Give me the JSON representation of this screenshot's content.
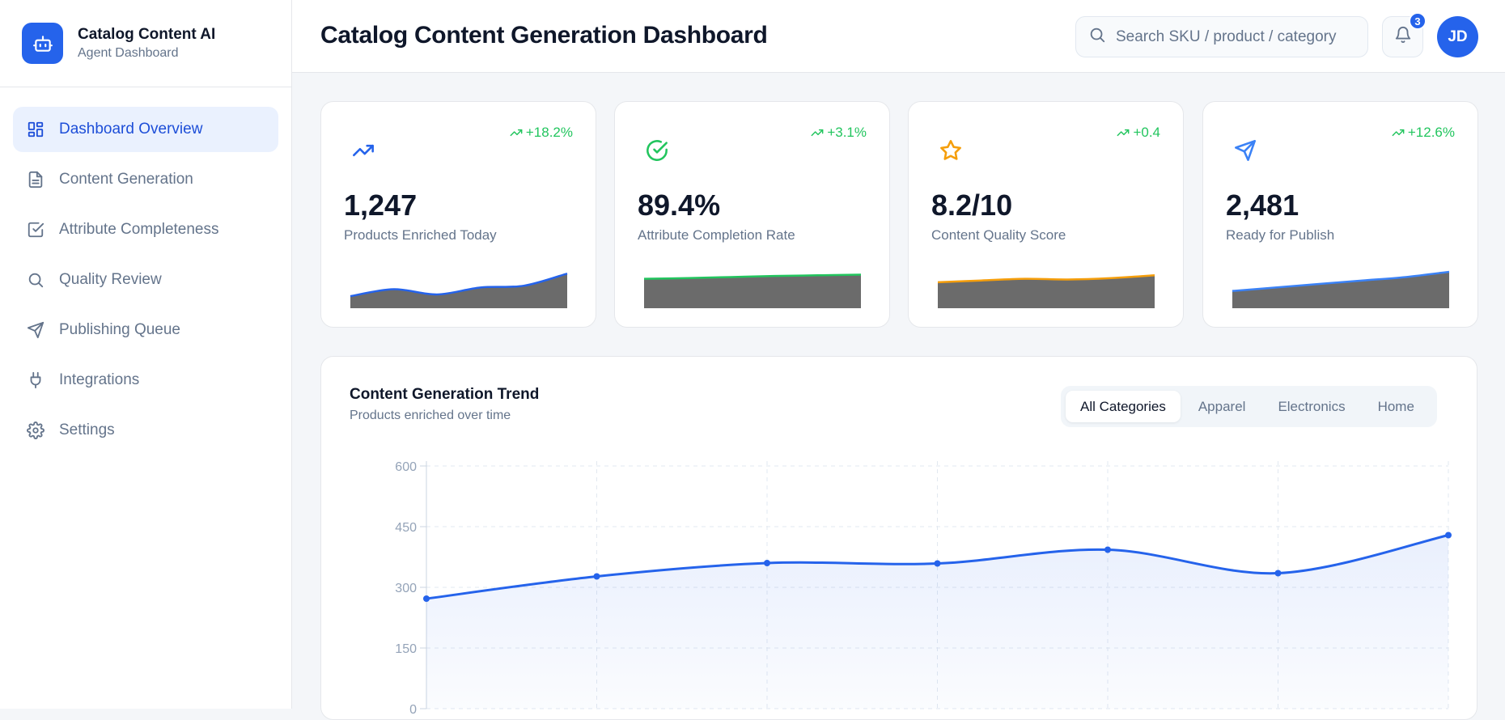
{
  "brand": {
    "title": "Catalog Content AI",
    "subtitle": "Agent Dashboard",
    "logo_icon": "robot-icon",
    "accent": "#2563eb"
  },
  "sidebar": {
    "items": [
      {
        "label": "Dashboard Overview",
        "icon": "layout-grid-icon",
        "active": true
      },
      {
        "label": "Content Generation",
        "icon": "file-text-icon",
        "active": false
      },
      {
        "label": "Attribute Completeness",
        "icon": "check-square-icon",
        "active": false
      },
      {
        "label": "Quality Review",
        "icon": "search-icon",
        "active": false
      },
      {
        "label": "Publishing Queue",
        "icon": "send-icon",
        "active": false
      },
      {
        "label": "Integrations",
        "icon": "plug-icon",
        "active": false
      },
      {
        "label": "Settings",
        "icon": "gear-icon",
        "active": false
      }
    ]
  },
  "header": {
    "title": "Catalog Content Generation Dashboard",
    "search_placeholder": "Search SKU / product / category",
    "notifications_count": "3",
    "avatar_initials": "JD"
  },
  "kpis": [
    {
      "value": "1,247",
      "label": "Products Enriched Today",
      "delta": "+18.2%",
      "icon": "trending-up-icon",
      "color": "#2563eb",
      "spark": [
        0.3,
        0.5,
        0.35,
        0.55,
        0.6,
        0.95
      ]
    },
    {
      "value": "89.4%",
      "label": "Attribute Completion Rate",
      "delta": "+3.1%",
      "icon": "check-circle-icon",
      "color": "#22c55e",
      "spark": [
        0.8,
        0.82,
        0.85,
        0.88,
        0.9,
        0.92
      ]
    },
    {
      "value": "8.2/10",
      "label": "Content Quality Score",
      "delta": "+0.4",
      "icon": "star-icon",
      "color": "#f59e0b",
      "spark": [
        0.7,
        0.75,
        0.8,
        0.78,
        0.82,
        0.9
      ]
    },
    {
      "value": "2,481",
      "label": "Ready for Publish",
      "delta": "+12.6%",
      "icon": "send-icon",
      "color": "#3b82f6",
      "spark": [
        0.45,
        0.55,
        0.65,
        0.75,
        0.85,
        1.0
      ]
    }
  ],
  "trend": {
    "title": "Content Generation Trend",
    "subtitle": "Products enriched over time",
    "filters": [
      {
        "label": "All Categories",
        "active": true
      },
      {
        "label": "Apparel",
        "active": false
      },
      {
        "label": "Electronics",
        "active": false
      },
      {
        "label": "Home",
        "active": false
      }
    ]
  },
  "chart_data": {
    "type": "area",
    "title": "Content Generation Trend",
    "xlabel": "",
    "ylabel": "",
    "ylim": [
      0,
      600
    ],
    "yticks": [
      0,
      150,
      300,
      450,
      600
    ],
    "x": [
      0,
      1,
      2,
      3,
      4,
      5,
      6
    ],
    "series": [
      {
        "values": [
          272,
          327,
          360,
          359,
          393,
          335,
          429
        ],
        "color": "#2563eb"
      }
    ],
    "grid": true
  }
}
